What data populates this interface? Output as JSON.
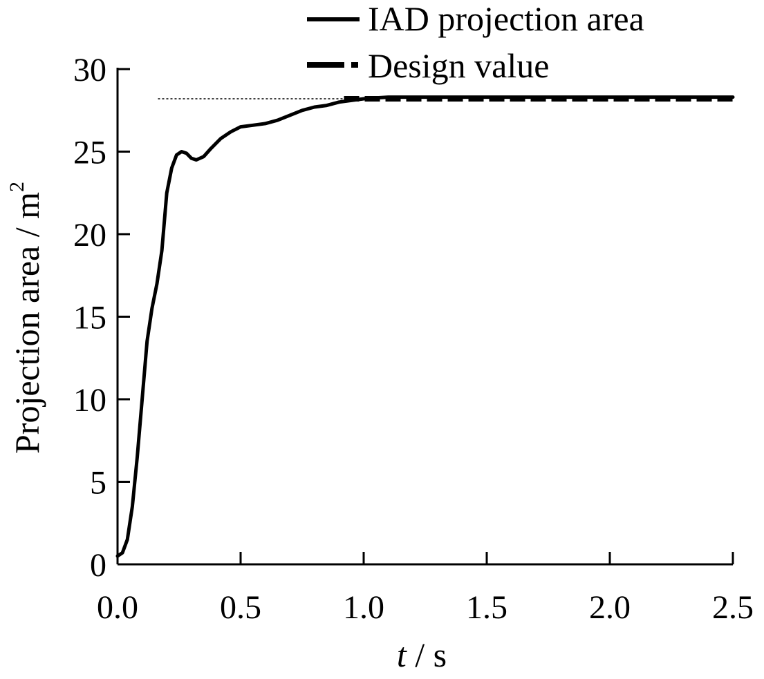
{
  "chart_data": {
    "type": "line",
    "xlabel": {
      "variable": "t",
      "unit": " / s"
    },
    "ylabel": {
      "main": "Projection area / m",
      "superscript": "2"
    },
    "xlim": [
      0,
      2.5
    ],
    "ylim": [
      0,
      30
    ],
    "x_ticks": [
      "0.0",
      "0.5",
      "1.0",
      "1.5",
      "2.0",
      "2.5"
    ],
    "y_ticks": [
      "0",
      "5",
      "10",
      "15",
      "20",
      "25",
      "30"
    ],
    "grid": false,
    "legend_position": "top-right",
    "series": [
      {
        "name": "IAD projection area",
        "style": "solid",
        "color": "#000000",
        "x": [
          0.0,
          0.02,
          0.04,
          0.06,
          0.08,
          0.1,
          0.12,
          0.14,
          0.16,
          0.18,
          0.2,
          0.22,
          0.24,
          0.26,
          0.28,
          0.3,
          0.32,
          0.35,
          0.38,
          0.42,
          0.46,
          0.5,
          0.55,
          0.6,
          0.65,
          0.7,
          0.75,
          0.8,
          0.85,
          0.9,
          0.95,
          1.0,
          1.05,
          1.1,
          1.2,
          1.3,
          1.5,
          1.75,
          2.0,
          2.25,
          2.5
        ],
        "y": [
          0.5,
          0.7,
          1.5,
          3.5,
          6.5,
          10.0,
          13.5,
          15.5,
          17.0,
          19.0,
          22.5,
          24.0,
          24.8,
          25.0,
          24.9,
          24.6,
          24.5,
          24.7,
          25.2,
          25.8,
          26.2,
          26.5,
          26.6,
          26.7,
          26.9,
          27.2,
          27.5,
          27.7,
          27.8,
          28.0,
          28.1,
          28.2,
          28.25,
          28.3,
          28.3,
          28.3,
          28.3,
          28.3,
          28.3,
          28.3,
          28.3
        ]
      },
      {
        "name": "Design value",
        "style": "dash-dot",
        "color": "#000000",
        "x": [
          0.08,
          2.5
        ],
        "y": [
          28.2,
          28.2
        ]
      }
    ]
  }
}
